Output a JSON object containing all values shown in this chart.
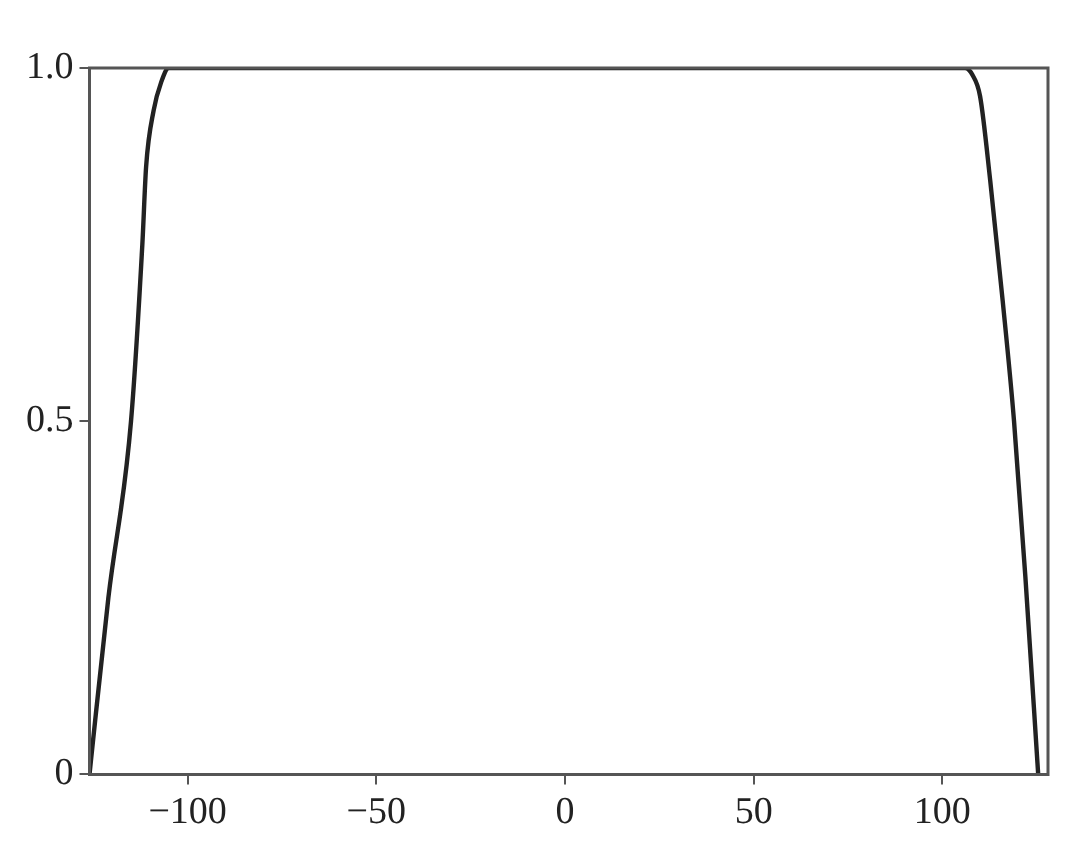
{
  "chart_data": {
    "type": "line",
    "x": [
      -126,
      -121,
      -115,
      -112,
      -111,
      -109,
      -107,
      -105,
      0,
      106,
      108,
      110,
      112.7,
      116,
      119,
      122,
      125.4
    ],
    "series": [
      {
        "color": "#222222",
        "values": [
          0,
          0.25,
          0.5,
          0.75,
          0.86,
          0.94,
          0.98,
          1,
          1,
          1,
          0.99,
          0.96,
          0.84,
          0.67,
          0.5,
          0.28,
          0
        ]
      }
    ],
    "xlim": [
      -126,
      128
    ],
    "ylim": [
      0,
      1
    ],
    "xticks": [
      {
        "value": -100,
        "label": "−100"
      },
      {
        "value": -50,
        "label": "−50"
      },
      0,
      50,
      100
    ],
    "yticks": [
      0,
      0.5,
      {
        "value": 1,
        "label": "1.0"
      }
    ],
    "grid": false,
    "legend": false,
    "marker": "none",
    "line_style": "solid"
  }
}
